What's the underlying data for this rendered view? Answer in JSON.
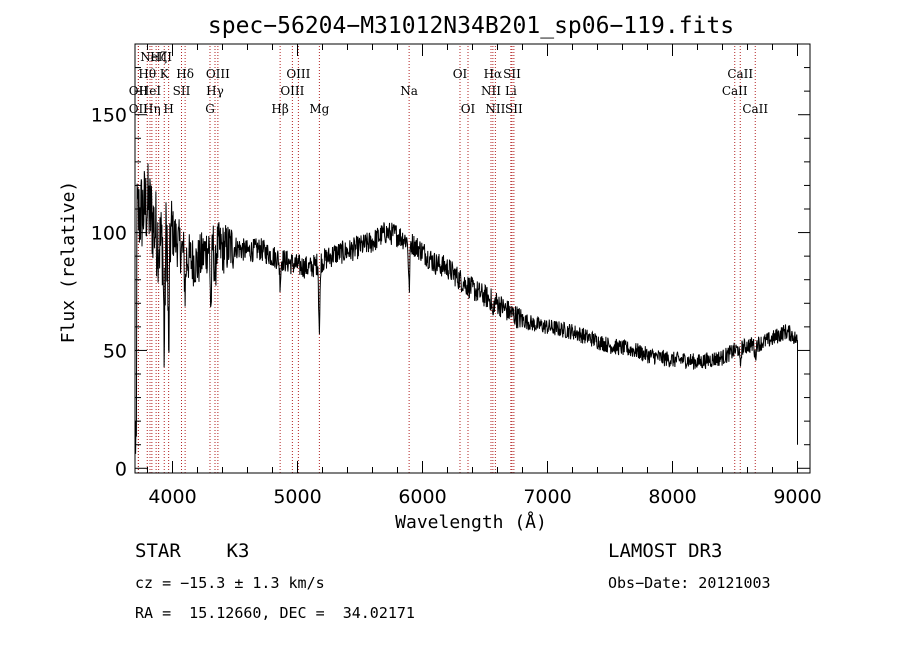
{
  "chart_data": {
    "type": "line",
    "title": "spec−56204−M31012N34B201_sp06−119.fits",
    "xlabel": "Wavelength (Å)",
    "ylabel": "Flux (relative)",
    "xlim": [
      3700,
      9100
    ],
    "ylim": [
      -2,
      180
    ],
    "x_ticks": [
      4000,
      5000,
      6000,
      7000,
      8000,
      9000
    ],
    "y_ticks": [
      0,
      50,
      100,
      150
    ],
    "series": [
      {
        "name": "spectrum",
        "continuum": [
          [
            3700,
            105
          ],
          [
            3800,
            112
          ],
          [
            3900,
            95
          ],
          [
            4000,
            100
          ],
          [
            4100,
            90
          ],
          [
            4200,
            87
          ],
          [
            4300,
            95
          ],
          [
            4400,
            93
          ],
          [
            4500,
            94
          ],
          [
            4600,
            92
          ],
          [
            4700,
            93
          ],
          [
            4800,
            90
          ],
          [
            4900,
            88
          ],
          [
            5000,
            86
          ],
          [
            5100,
            85
          ],
          [
            5200,
            88
          ],
          [
            5300,
            91
          ],
          [
            5400,
            92
          ],
          [
            5500,
            94
          ],
          [
            5600,
            96
          ],
          [
            5700,
            100
          ],
          [
            5800,
            99
          ],
          [
            5900,
            96
          ],
          [
            6000,
            92
          ],
          [
            6100,
            87
          ],
          [
            6200,
            85
          ],
          [
            6300,
            80
          ],
          [
            6400,
            76
          ],
          [
            6500,
            73
          ],
          [
            6600,
            70
          ],
          [
            6700,
            66
          ],
          [
            6800,
            63
          ],
          [
            6900,
            61
          ],
          [
            7000,
            60
          ],
          [
            7100,
            59
          ],
          [
            7200,
            58
          ],
          [
            7300,
            56
          ],
          [
            7400,
            54
          ],
          [
            7500,
            52
          ],
          [
            7600,
            51
          ],
          [
            7700,
            50
          ],
          [
            7800,
            48
          ],
          [
            7900,
            47
          ],
          [
            8000,
            46
          ],
          [
            8100,
            46
          ],
          [
            8200,
            45
          ],
          [
            8300,
            46
          ],
          [
            8400,
            47
          ],
          [
            8500,
            50
          ],
          [
            8600,
            52
          ],
          [
            8700,
            53
          ],
          [
            8800,
            55
          ],
          [
            8900,
            58
          ],
          [
            8950,
            57
          ],
          [
            9000,
            54
          ]
        ],
        "absorption_features": [
          {
            "x": 3934,
            "depth": 50
          },
          {
            "x": 3969,
            "depth": 55
          },
          {
            "x": 4101,
            "depth": 15
          },
          {
            "x": 4307,
            "depth": 30
          },
          {
            "x": 4340,
            "depth": 15
          },
          {
            "x": 4861,
            "depth": 10
          },
          {
            "x": 5175,
            "depth": 30
          },
          {
            "x": 5893,
            "depth": 22
          },
          {
            "x": 6563,
            "depth": 8
          },
          {
            "x": 8542,
            "depth": 8
          },
          {
            "x": 8662,
            "depth": 6
          }
        ]
      }
    ],
    "lines": [
      {
        "x": 3727,
        "label": "OII",
        "row": 2
      },
      {
        "x": 3727,
        "label": "OII",
        "row": 3
      },
      {
        "x": 3798,
        "label": "Hθ",
        "row": 1
      },
      {
        "x": 3820,
        "label": "HeI",
        "row": 2
      },
      {
        "x": 3835,
        "label": "Hη",
        "row": 3
      },
      {
        "x": 3869,
        "label": "NeIII",
        "row": 0
      },
      {
        "x": 3889,
        "label": "Hζ",
        "row": 0
      },
      {
        "x": 3934,
        "label": "K",
        "row": 1
      },
      {
        "x": 3969,
        "label": "H",
        "row": 3
      },
      {
        "x": 4072,
        "label": "SII",
        "row": 2
      },
      {
        "x": 4101,
        "label": "Hδ",
        "row": 1
      },
      {
        "x": 4300,
        "label": "G",
        "row": 3
      },
      {
        "x": 4340,
        "label": "Hγ",
        "row": 2
      },
      {
        "x": 4363,
        "label": "OIII",
        "row": 1
      },
      {
        "x": 4861,
        "label": "Hβ",
        "row": 3
      },
      {
        "x": 4959,
        "label": "OIII",
        "row": 2
      },
      {
        "x": 5007,
        "label": "OIII",
        "row": 1
      },
      {
        "x": 5175,
        "label": "Mg",
        "row": 3
      },
      {
        "x": 5893,
        "label": "Na",
        "row": 2
      },
      {
        "x": 6300,
        "label": "OI",
        "row": 1
      },
      {
        "x": 6364,
        "label": "OI",
        "row": 3
      },
      {
        "x": 6548,
        "label": "NII",
        "row": 2
      },
      {
        "x": 6563,
        "label": "Hα",
        "row": 1
      },
      {
        "x": 6583,
        "label": "NII",
        "row": 3
      },
      {
        "x": 6707,
        "label": "Li",
        "row": 2
      },
      {
        "x": 6716,
        "label": "SII",
        "row": 1
      },
      {
        "x": 6731,
        "label": "SII",
        "row": 3
      },
      {
        "x": 8498,
        "label": "CaII",
        "row": 2
      },
      {
        "x": 8542,
        "label": "CaII",
        "row": 1
      },
      {
        "x": 8662,
        "label": "CaII",
        "row": 3
      }
    ]
  },
  "info": {
    "object_line": "STAR    K3",
    "survey": "LAMOST DR3",
    "cz": "cz = −15.3 ± 1.3 km/s",
    "obs_date": "Obs−Date: 20121003",
    "radec": "RA =  15.12660, DEC =  34.02171"
  },
  "colors": {
    "axis": "#000000",
    "spectrum": "#000000",
    "line_marker": "#b22222"
  }
}
